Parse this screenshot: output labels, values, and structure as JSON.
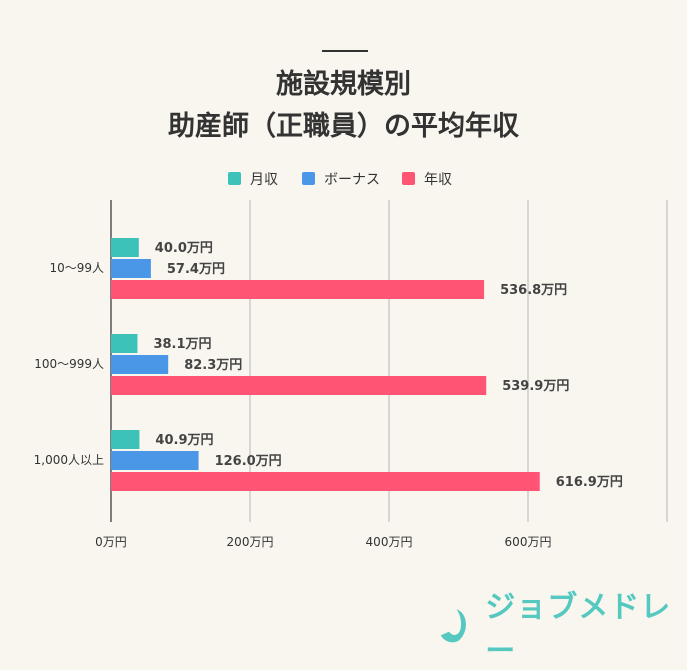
{
  "chart_data": {
    "type": "bar",
    "orientation": "horizontal",
    "title_lines": [
      "施設規模別",
      "助産師（正職員）の平均年収"
    ],
    "categories": [
      "10〜99人",
      "100〜999人",
      "1,000人以上"
    ],
    "unit": "万円",
    "series": [
      {
        "name": "月収",
        "color": "#3cc2b8",
        "values": [
          40.0,
          38.1,
          40.9
        ],
        "labels": [
          "40.0万円",
          "38.1万円",
          "40.9万円"
        ]
      },
      {
        "name": "ボーナス",
        "color": "#4a97e8",
        "values": [
          57.4,
          82.3,
          126.0
        ],
        "labels": [
          "57.4万円",
          "82.3万円",
          "126.0万円"
        ]
      },
      {
        "name": "年収",
        "color": "#ff5474",
        "values": [
          536.8,
          539.9,
          616.9
        ],
        "labels": [
          "536.8万円",
          "539.9万円",
          "616.9万円"
        ]
      }
    ],
    "xlim": [
      0,
      800
    ],
    "xticks": [
      0,
      200,
      400,
      600,
      800
    ],
    "xtick_labels": [
      "0万円",
      "200万円",
      "400万円",
      "600万円",
      ""
    ],
    "grid": true,
    "legend_position": "top"
  },
  "logo": {
    "text": "ジョブメドレー",
    "color": "#55c9c0"
  }
}
